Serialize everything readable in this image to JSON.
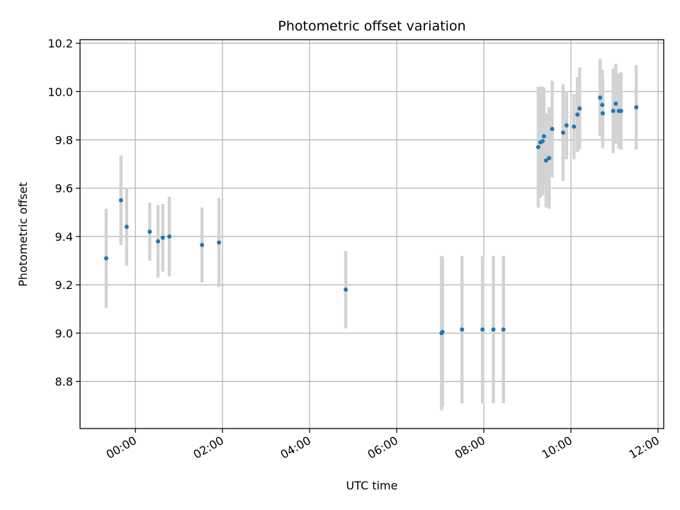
{
  "chart_data": {
    "type": "scatter",
    "title": "Photometric offset variation",
    "xlabel": "UTC time",
    "ylabel": "Photometric offset",
    "x_axis": {
      "unit": "hours",
      "range": [
        -1.27,
        12.13
      ],
      "ticks": [
        0,
        2,
        4,
        6,
        8,
        10,
        12
      ],
      "tick_labels": [
        "00:00",
        "02:00",
        "04:00",
        "06:00",
        "08:00",
        "10:00",
        "12:00"
      ]
    },
    "y_axis": {
      "range": [
        8.605,
        10.215
      ],
      "ticks": [
        8.8,
        9.0,
        9.2,
        9.4,
        9.6,
        9.8,
        10.0,
        10.2
      ],
      "tick_labels": [
        "8.8",
        "9.0",
        "9.2",
        "9.4",
        "9.6",
        "9.8",
        "10.0",
        "10.2"
      ]
    },
    "grid": true,
    "colors": {
      "point": "#1f77b4",
      "errorbar": "#d3d3d3",
      "grid": "#b0b0b0"
    },
    "points": [
      {
        "x": -0.67,
        "y": 9.31,
        "err": 0.205
      },
      {
        "x": -0.33,
        "y": 9.55,
        "err": 0.185
      },
      {
        "x": -0.2,
        "y": 9.44,
        "err": 0.16
      },
      {
        "x": 0.33,
        "y": 9.42,
        "err": 0.12
      },
      {
        "x": 0.52,
        "y": 9.38,
        "err": 0.15
      },
      {
        "x": 0.63,
        "y": 9.395,
        "err": 0.14
      },
      {
        "x": 0.78,
        "y": 9.4,
        "err": 0.165
      },
      {
        "x": 1.53,
        "y": 9.365,
        "err": 0.155
      },
      {
        "x": 1.92,
        "y": 9.375,
        "err": 0.185
      },
      {
        "x": 4.83,
        "y": 9.18,
        "err": 0.16
      },
      {
        "x": 7.03,
        "y": 9.0,
        "err": 0.32
      },
      {
        "x": 7.05,
        "y": 9.005,
        "err": 0.31
      },
      {
        "x": 7.5,
        "y": 9.015,
        "err": 0.305
      },
      {
        "x": 7.97,
        "y": 9.015,
        "err": 0.305
      },
      {
        "x": 8.22,
        "y": 9.015,
        "err": 0.305
      },
      {
        "x": 8.45,
        "y": 9.015,
        "err": 0.305
      },
      {
        "x": 9.25,
        "y": 9.77,
        "err": 0.25
      },
      {
        "x": 9.3,
        "y": 9.79,
        "err": 0.23
      },
      {
        "x": 9.35,
        "y": 9.795,
        "err": 0.225
      },
      {
        "x": 9.38,
        "y": 9.815,
        "err": 0.2
      },
      {
        "x": 9.43,
        "y": 9.715,
        "err": 0.195
      },
      {
        "x": 9.5,
        "y": 9.725,
        "err": 0.21
      },
      {
        "x": 9.57,
        "y": 9.845,
        "err": 0.2
      },
      {
        "x": 9.82,
        "y": 9.83,
        "err": 0.2
      },
      {
        "x": 9.9,
        "y": 9.86,
        "err": 0.14
      },
      {
        "x": 10.07,
        "y": 9.855,
        "err": 0.135
      },
      {
        "x": 10.15,
        "y": 9.905,
        "err": 0.155
      },
      {
        "x": 10.2,
        "y": 9.93,
        "err": 0.17
      },
      {
        "x": 10.67,
        "y": 9.975,
        "err": 0.16
      },
      {
        "x": 10.72,
        "y": 9.945,
        "err": 0.145
      },
      {
        "x": 10.73,
        "y": 9.91,
        "err": 0.145
      },
      {
        "x": 10.97,
        "y": 9.92,
        "err": 0.175
      },
      {
        "x": 11.03,
        "y": 9.95,
        "err": 0.165
      },
      {
        "x": 11.1,
        "y": 9.92,
        "err": 0.155
      },
      {
        "x": 11.15,
        "y": 9.92,
        "err": 0.16
      },
      {
        "x": 11.5,
        "y": 9.935,
        "err": 0.175
      }
    ]
  }
}
